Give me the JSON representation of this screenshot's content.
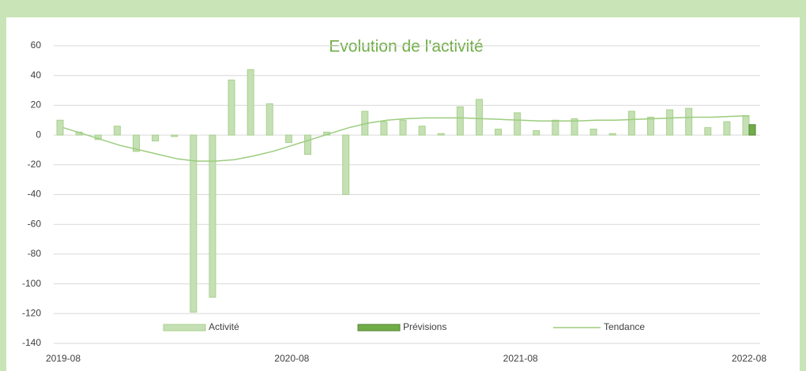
{
  "chart_data": {
    "type": "bar",
    "title": "Evolution de l'activité",
    "categories": [
      "2019-08",
      null,
      null,
      null,
      null,
      null,
      null,
      null,
      null,
      null,
      null,
      null,
      "2020-08",
      null,
      null,
      null,
      null,
      null,
      null,
      null,
      null,
      null,
      null,
      null,
      "2021-08",
      null,
      null,
      null,
      null,
      null,
      null,
      null,
      null,
      null,
      null,
      null,
      "2022-08"
    ],
    "series": [
      {
        "name": "Activité",
        "color": "#c5e0b4",
        "values": [
          10,
          2,
          -3,
          6,
          -11,
          -4,
          -1,
          -119,
          -109,
          37,
          44,
          21,
          -5,
          -13,
          2,
          -40,
          16,
          9,
          10,
          6,
          1,
          19,
          24,
          4,
          15,
          3,
          10,
          11,
          4,
          1,
          16,
          12,
          17,
          18,
          5,
          9,
          13
        ]
      },
      {
        "name": "Prévisions",
        "color": "#70ad47",
        "values": [
          null,
          null,
          null,
          null,
          null,
          null,
          null,
          null,
          null,
          null,
          null,
          null,
          null,
          null,
          null,
          null,
          null,
          null,
          null,
          null,
          null,
          null,
          null,
          null,
          null,
          null,
          null,
          null,
          null,
          null,
          null,
          null,
          null,
          null,
          null,
          null,
          7
        ]
      },
      {
        "name": "Tendance",
        "type": "line",
        "color": "#9ccc7e",
        "values": [
          5,
          1,
          -3,
          -7,
          -10,
          -13,
          -16,
          -17.5,
          -17.5,
          -16.5,
          -14,
          -11,
          -7,
          -3,
          1,
          5,
          8,
          10,
          11,
          11.5,
          11.5,
          11.5,
          11,
          10.5,
          10,
          9.5,
          9.5,
          9.5,
          10,
          10,
          10.5,
          11,
          11.5,
          12,
          12,
          12.5,
          13
        ]
      }
    ],
    "ylim": [
      -140,
      60
    ],
    "yticks": [
      -140,
      -120,
      -100,
      -80,
      -60,
      -40,
      -20,
      0,
      20,
      40,
      60
    ],
    "grid": true,
    "legend": "bottom"
  }
}
